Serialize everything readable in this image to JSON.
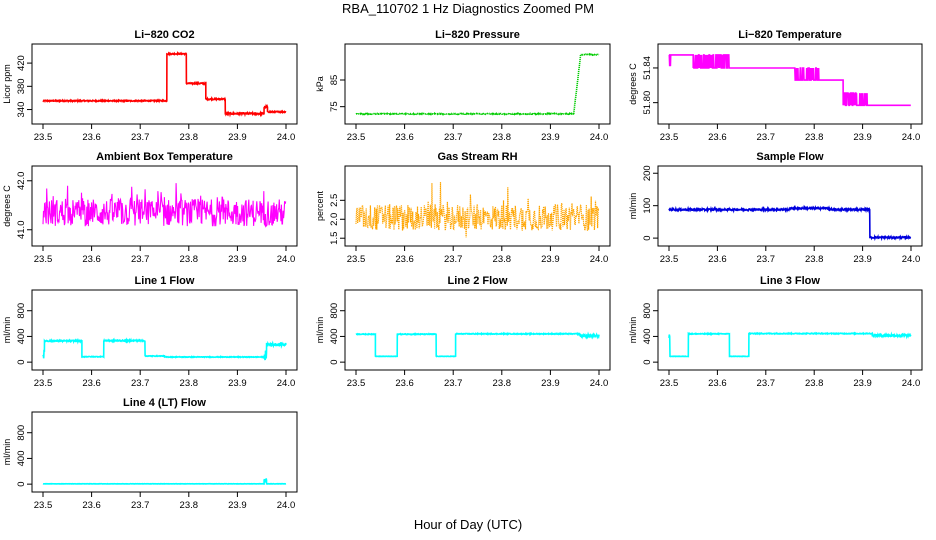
{
  "page": {
    "title": "RBA_110702  1 Hz Diagnostics Zoomed PM",
    "xlabel": "Hour of Day (UTC)"
  },
  "chart_data": [
    {
      "id": "co2",
      "type": "line",
      "title": "Li−820 CO2",
      "ylabel": "Licor ppm",
      "color": "#ff0000",
      "style": "line",
      "xlim": [
        23.5,
        24.0
      ],
      "ylim": [
        322,
        446
      ],
      "xticks": [
        "23.5",
        "23.6",
        "23.7",
        "23.8",
        "23.9",
        "24.0"
      ],
      "yticks": [
        "340",
        "380",
        "420"
      ],
      "segments": [
        {
          "x0": 23.5,
          "x1": 23.755,
          "level": 355,
          "noise": 1
        },
        {
          "x0": 23.755,
          "x1": 23.795,
          "level": 436,
          "noise": 1
        },
        {
          "x0": 23.795,
          "x1": 23.835,
          "level": 385,
          "noise": 1
        },
        {
          "x0": 23.835,
          "x1": 23.875,
          "level": 358,
          "noise": 1
        },
        {
          "x0": 23.875,
          "x1": 23.955,
          "level": 333,
          "noise": 1.5
        },
        {
          "x0": 23.955,
          "x1": 23.962,
          "level": 344,
          "noise": 3
        },
        {
          "x0": 23.962,
          "x1": 24.0,
          "level": 336,
          "noise": 1
        }
      ]
    },
    {
      "id": "pressure",
      "type": "line",
      "title": "Li−820 Pressure",
      "ylabel": "kPa",
      "color": "#00cc00",
      "style": "points",
      "xlim": [
        23.5,
        24.0
      ],
      "ylim": [
        70,
        97
      ],
      "xticks": [
        "23.5",
        "23.6",
        "23.7",
        "23.8",
        "23.9",
        "24.0"
      ],
      "yticks": [
        "75",
        "85"
      ],
      "segments": [
        {
          "x0": 23.5,
          "x1": 23.948,
          "level": 72.3,
          "noise": 0.15
        },
        {
          "x0": 23.948,
          "x1": 23.962,
          "level": 72.3,
          "ramp_to": 94.0,
          "noise": 0.3
        },
        {
          "x0": 23.962,
          "x1": 24.0,
          "level": 94.5,
          "noise": 0.15
        }
      ]
    },
    {
      "id": "licor_temp",
      "type": "line",
      "title": "Li−820 Temperature",
      "ylabel": "degrees C",
      "color": "#ff00ff",
      "style": "line",
      "xlim": [
        23.5,
        24.0
      ],
      "ylim": [
        51.78,
        51.863
      ],
      "xticks": [
        "23.5",
        "23.6",
        "23.7",
        "23.8",
        "23.9",
        "24.0"
      ],
      "yticks": [
        "51.80",
        "51.84"
      ],
      "segments": [
        {
          "x0": 23.5,
          "x1": 23.51,
          "level": 51.855,
          "flip": 51.842,
          "rate": 0.35
        },
        {
          "x0": 23.51,
          "x1": 23.55,
          "level": 51.855,
          "flip": 51.855,
          "rate": 0
        },
        {
          "x0": 23.55,
          "x1": 23.625,
          "level": 51.855,
          "flip": 51.84,
          "rate": 0.5
        },
        {
          "x0": 23.625,
          "x1": 23.76,
          "level": 51.84,
          "flip": 51.84,
          "rate": 0
        },
        {
          "x0": 23.76,
          "x1": 23.81,
          "level": 51.826,
          "flip": 51.84,
          "rate": 0.45
        },
        {
          "x0": 23.81,
          "x1": 23.86,
          "level": 51.826,
          "flip": 51.826,
          "rate": 0
        },
        {
          "x0": 23.86,
          "x1": 23.91,
          "level": 51.811,
          "flip": 51.797,
          "rate": 0.55
        },
        {
          "x0": 23.91,
          "x1": 24.0,
          "level": 51.797,
          "flip": 51.797,
          "rate": 0
        }
      ]
    },
    {
      "id": "box_temp",
      "type": "line",
      "title": "Ambient Box Temperature",
      "ylabel": "degrees C",
      "color": "#ff00ff",
      "style": "noise",
      "xlim": [
        23.5,
        24.0
      ],
      "ylim": [
        40.75,
        42.22
      ],
      "xticks": [
        "23.5",
        "23.6",
        "23.7",
        "23.8",
        "23.9",
        "24.0"
      ],
      "yticks": [
        "41.0",
        "42.0"
      ],
      "segments": [
        {
          "x0": 23.5,
          "x1": 24.0,
          "level": 41.35,
          "noise": 0.28,
          "spike": 0.55
        }
      ]
    },
    {
      "id": "gas_rh",
      "type": "line",
      "title": "Gas Stream RH",
      "ylabel": "percent",
      "color": "#ffa500",
      "style": "noisepoints",
      "xlim": [
        23.5,
        24.0
      ],
      "ylim": [
        1.4,
        3.3
      ],
      "xticks": [
        "23.5",
        "23.6",
        "23.7",
        "23.8",
        "23.9",
        "24.0"
      ],
      "yticks": [
        "1.5",
        "2.0",
        "2.5"
      ],
      "segments": [
        {
          "x0": 23.5,
          "x1": 24.0,
          "level": 2.05,
          "noise": 0.35,
          "spike": 0.85
        }
      ]
    },
    {
      "id": "sample_flow",
      "type": "line",
      "title": "Sample Flow",
      "ylabel": "ml/min",
      "color": "#0000dd",
      "style": "line",
      "xlim": [
        23.5,
        24.0
      ],
      "ylim": [
        -12,
        210
      ],
      "xticks": [
        "23.5",
        "23.6",
        "23.7",
        "23.8",
        "23.9",
        "24.0"
      ],
      "yticks": [
        "0",
        "100",
        "200"
      ],
      "segments": [
        {
          "x0": 23.5,
          "x1": 23.75,
          "level": 88,
          "noise": 2.5
        },
        {
          "x0": 23.75,
          "x1": 23.83,
          "level": 92,
          "noise": 2.5
        },
        {
          "x0": 23.83,
          "x1": 23.915,
          "level": 88,
          "noise": 2.5
        },
        {
          "x0": 23.915,
          "x1": 24.0,
          "level": 2,
          "noise": 2.5
        }
      ]
    },
    {
      "id": "line1",
      "type": "line",
      "title": "Line 1 Flow",
      "ylabel": "ml/min",
      "color": "#00ffff",
      "style": "line",
      "xlim": [
        23.5,
        24.0
      ],
      "ylim": [
        -60,
        1060
      ],
      "xticks": [
        "23.5",
        "23.6",
        "23.7",
        "23.8",
        "23.9",
        "24.0"
      ],
      "yticks": [
        "0",
        "400",
        "800"
      ],
      "segments": [
        {
          "x0": 23.5,
          "x1": 23.503,
          "level": 120,
          "noise": 60
        },
        {
          "x0": 23.503,
          "x1": 23.58,
          "level": 330,
          "noise": 10
        },
        {
          "x0": 23.58,
          "x1": 23.625,
          "level": 85,
          "noise": 5
        },
        {
          "x0": 23.625,
          "x1": 23.71,
          "level": 335,
          "noise": 10
        },
        {
          "x0": 23.71,
          "x1": 23.75,
          "level": 95,
          "noise": 5
        },
        {
          "x0": 23.75,
          "x1": 23.955,
          "level": 80,
          "noise": 5
        },
        {
          "x0": 23.955,
          "x1": 23.96,
          "level": 100,
          "noise": 80
        },
        {
          "x0": 23.96,
          "x1": 24.0,
          "level": 275,
          "noise": 25
        }
      ]
    },
    {
      "id": "line2",
      "type": "line",
      "title": "Line 2 Flow",
      "ylabel": "ml/min",
      "color": "#00ffff",
      "style": "line",
      "xlim": [
        23.5,
        24.0
      ],
      "ylim": [
        -60,
        1060
      ],
      "xticks": [
        "23.5",
        "23.6",
        "23.7",
        "23.8",
        "23.9",
        "24.0"
      ],
      "yticks": [
        "0",
        "400",
        "800"
      ],
      "segments": [
        {
          "x0": 23.5,
          "x1": 23.54,
          "level": 435,
          "noise": 5
        },
        {
          "x0": 23.54,
          "x1": 23.585,
          "level": 90,
          "noise": 3
        },
        {
          "x0": 23.585,
          "x1": 23.665,
          "level": 435,
          "noise": 6
        },
        {
          "x0": 23.665,
          "x1": 23.705,
          "level": 90,
          "noise": 3
        },
        {
          "x0": 23.705,
          "x1": 23.96,
          "level": 440,
          "noise": 6
        },
        {
          "x0": 23.96,
          "x1": 24.0,
          "level": 410,
          "noise": 20
        }
      ]
    },
    {
      "id": "line3",
      "type": "line",
      "title": "Line 3 Flow",
      "ylabel": "ml/min",
      "color": "#00ffff",
      "style": "line",
      "xlim": [
        23.5,
        24.0
      ],
      "ylim": [
        -60,
        1060
      ],
      "xticks": [
        "23.5",
        "23.6",
        "23.7",
        "23.8",
        "23.9",
        "24.0"
      ],
      "yticks": [
        "0",
        "400",
        "800"
      ],
      "segments": [
        {
          "x0": 23.5,
          "x1": 23.502,
          "level": 400,
          "noise": 30
        },
        {
          "x0": 23.502,
          "x1": 23.54,
          "level": 90,
          "noise": 3
        },
        {
          "x0": 23.54,
          "x1": 23.625,
          "level": 440,
          "noise": 6
        },
        {
          "x0": 23.625,
          "x1": 23.665,
          "level": 90,
          "noise": 3
        },
        {
          "x0": 23.665,
          "x1": 23.92,
          "level": 445,
          "noise": 6
        },
        {
          "x0": 23.92,
          "x1": 24.0,
          "level": 415,
          "noise": 20
        }
      ]
    },
    {
      "id": "line4",
      "type": "line",
      "title": "Line 4 (LT) Flow",
      "ylabel": "ml/min",
      "color": "#00ffff",
      "style": "line",
      "xlim": [
        23.5,
        24.0
      ],
      "ylim": [
        -60,
        1060
      ],
      "xticks": [
        "23.5",
        "23.6",
        "23.7",
        "23.8",
        "23.9",
        "24.0"
      ],
      "yticks": [
        "0",
        "400",
        "800"
      ],
      "segments": [
        {
          "x0": 23.5,
          "x1": 23.955,
          "level": 5,
          "noise": 2
        },
        {
          "x0": 23.955,
          "x1": 23.96,
          "level": 60,
          "noise": 40
        },
        {
          "x0": 23.96,
          "x1": 24.0,
          "level": 5,
          "noise": 2
        }
      ]
    }
  ]
}
